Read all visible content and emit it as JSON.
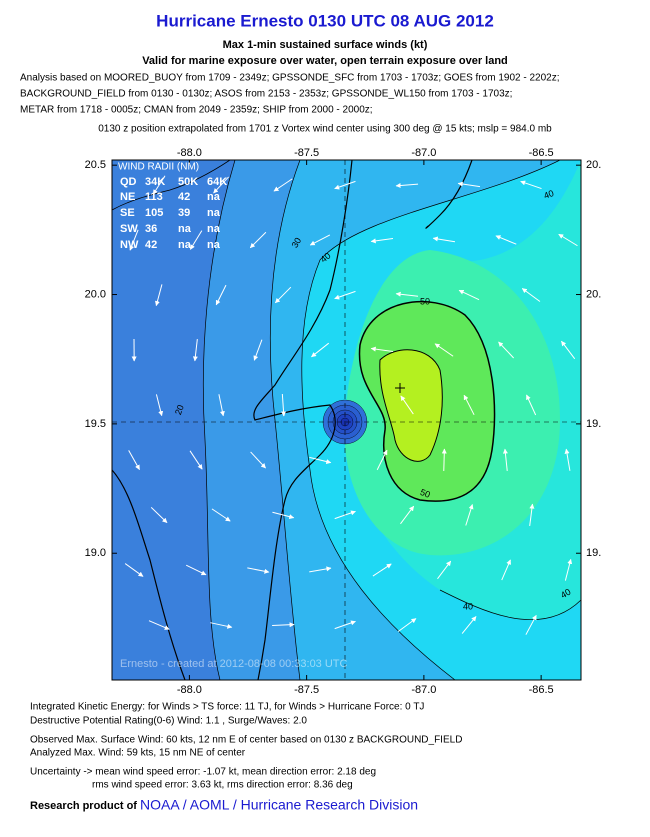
{
  "header": {
    "title": "Hurricane Ernesto 0130 UTC 08 AUG 2012",
    "subtitle": "Max 1-min sustained surface winds (kt)",
    "note": "Valid for marine exposure over water, open terrain exposure over land",
    "analysis": [
      "Analysis based on MOORED_BUOY from 1709 - 2349z; GPSSONDE_SFC from 1703 - 1703z; GOES from 1902 - 2202z;",
      "BACKGROUND_FIELD from 0130 - 0130z; ASOS from 2153 - 2353z; GPSSONDE_WL150 from 1703 - 1703z;",
      "METAR from 1718 - 0005z; CMAN from 2049 - 2359z; SHIP from 2000 - 2000z;"
    ],
    "position": "0130 z position extrapolated from 1701 z Vortex wind center using 300 deg @ 15 kts; mslp = 984.0 mb"
  },
  "map": {
    "xlim": [
      -88.33,
      -86.33
    ],
    "ylim": [
      18.51,
      20.52
    ],
    "xticks": [
      {
        "value": -88,
        "label": "-88.0"
      },
      {
        "value": -87.5,
        "label": "-87.5"
      },
      {
        "value": -87,
        "label": "-87.0"
      },
      {
        "value": -86.5,
        "label": "-86.5"
      }
    ],
    "yticks": [
      {
        "value": 20.5,
        "label": "20.5"
      },
      {
        "value": 20,
        "label": "20.0"
      },
      19.5,
      {
        "value": 19,
        "label": "19.0"
      }
    ],
    "yticks_right": [
      {
        "value": 20.5,
        "label": "20."
      },
      {
        "value": 20,
        "label": "20."
      },
      {
        "value": 19.5,
        "label": "19."
      },
      {
        "value": 19,
        "label": "19."
      }
    ],
    "wind_radii": {
      "title": "WIND RADII (NM)",
      "columns": [
        "QD",
        "34K",
        "50K",
        "64K"
      ],
      "rows": [
        [
          "NE",
          113,
          42,
          "na"
        ],
        [
          "SE",
          105,
          39,
          "na"
        ],
        [
          "SW",
          36,
          "na",
          "na"
        ],
        [
          "NW",
          42,
          "na",
          "na"
        ]
      ]
    },
    "contour_labels": [
      "30",
      "40",
      "40",
      "20",
      "50",
      "50",
      "40",
      "40"
    ],
    "credit": "Ernesto - created at 2012-08-08 00:33:03 UTC"
  },
  "footer": {
    "lines": [
      "Integrated Kinetic Energy: for Winds > TS force: 11 TJ, for Winds > Hurricane Force: 0 TJ",
      "Destructive Potential Rating(0-6)  Wind: 1.1 , Surge/Waves: 2.0",
      "Observed Max. Surface Wind: 60 kts, 12 nm E of center based on 0130 z BACKGROUND_FIELD",
      "Analyzed Max. Wind: 59 kts, 15 nm  NE of center",
      "Uncertainty -> mean wind speed error:  -1.07 kt, mean direction error: 2.18 deg",
      "rms wind speed error: 3.63 kt, rms direction error: 8.36 deg"
    ],
    "research_label": "Research product of",
    "research_org": "NOAA / AOML / Hurricane Research Division"
  }
}
